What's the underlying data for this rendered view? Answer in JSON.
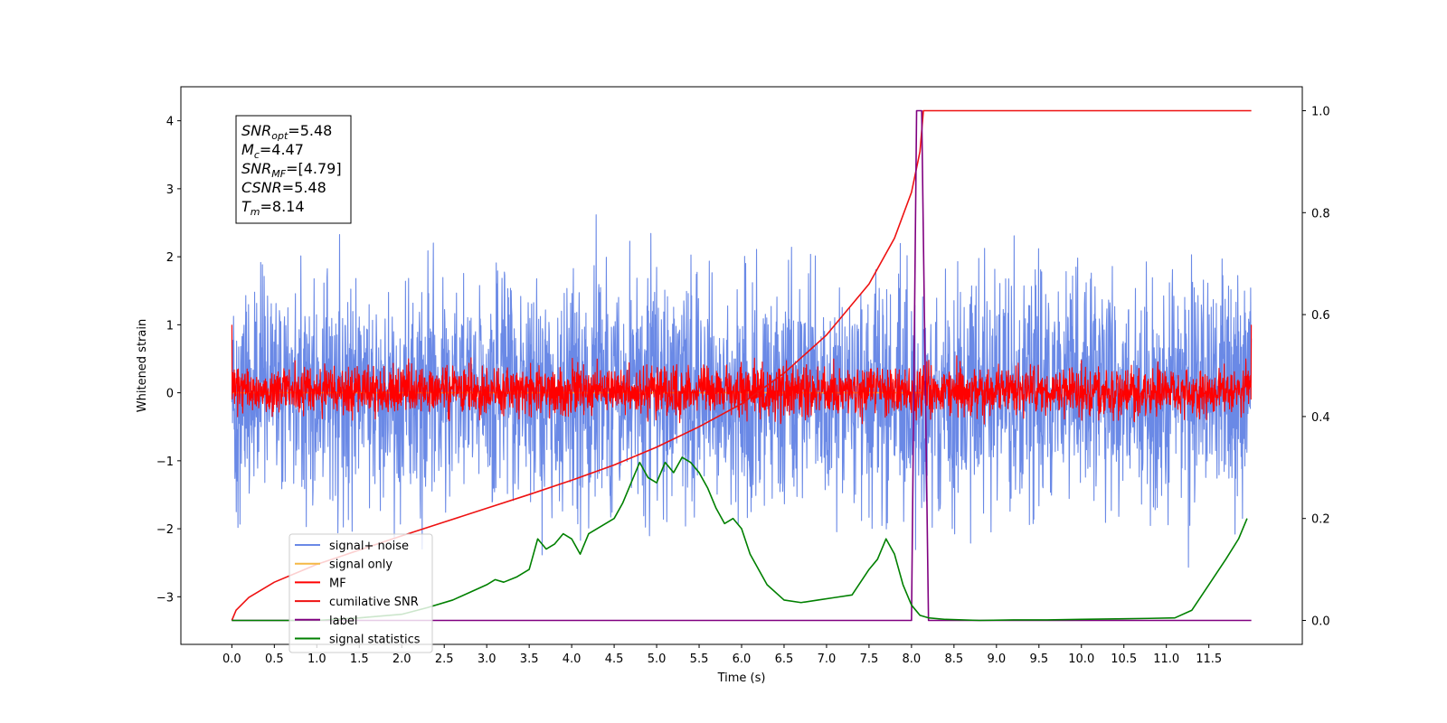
{
  "chart_data": {
    "type": "line",
    "xlabel": "Time (s)",
    "ylabel": "Whitened strain",
    "x_range": [
      -0.6,
      12.6
    ],
    "y_left_range": [
      -3.7,
      4.5
    ],
    "y_right_range": [
      -0.047,
      1.047
    ],
    "x_ticks": [
      0.0,
      0.5,
      1.0,
      1.5,
      2.0,
      2.5,
      3.0,
      3.5,
      4.0,
      4.5,
      5.0,
      5.5,
      6.0,
      6.5,
      7.0,
      7.5,
      8.0,
      8.5,
      9.0,
      9.5,
      10.0,
      10.5,
      11.0,
      11.5
    ],
    "x_tick_labels": [
      "0.0",
      "0.5",
      "1.0",
      "1.5",
      "2.0",
      "2.5",
      "3.0",
      "3.5",
      "4.0",
      "4.5",
      "5.0",
      "5.5",
      "6.0",
      "6.5",
      "7.0",
      "7.5",
      "8.0",
      "8.5",
      "9.0",
      "9.5",
      "10.0",
      "10.5",
      "11.0",
      "11.5"
    ],
    "y_left_ticks": [
      -3,
      -2,
      -1,
      0,
      1,
      2,
      3,
      4
    ],
    "y_left_tick_labels": [
      "−3",
      "−2",
      "−1",
      "0",
      "1",
      "2",
      "3",
      "4"
    ],
    "y_right_ticks": [
      0.0,
      0.2,
      0.4,
      0.6,
      0.8,
      1.0
    ],
    "y_right_tick_labels": [
      "0.0",
      "0.2",
      "0.4",
      "0.6",
      "0.8",
      "1.0"
    ],
    "grid": false,
    "legend_position": "bottom-left",
    "series": [
      {
        "name": "signal+ noise",
        "axis": "left",
        "color": "#6a89e6",
        "kind": "noise",
        "t_range": [
          0,
          12
        ],
        "sigma": 0.85,
        "mean": 0.0,
        "n": 3000
      },
      {
        "name": "signal only",
        "axis": "left",
        "color": "#f5b845",
        "kind": "flat",
        "t_range": [
          0,
          8.14
        ],
        "value": 0.0
      },
      {
        "name": "MF",
        "axis": "left",
        "color": "#ff0000",
        "kind": "noise",
        "t_range": [
          0,
          12
        ],
        "sigma": 0.18,
        "mean": 0.03,
        "n": 3000,
        "edges": [
          1.0,
          1.0
        ]
      },
      {
        "name": "cumilative SNR",
        "axis": "right",
        "color": "#ee1111",
        "kind": "line",
        "x": [
          0.0,
          0.05,
          0.2,
          0.5,
          1.0,
          1.5,
          2.0,
          2.5,
          3.0,
          3.5,
          4.0,
          4.5,
          5.0,
          5.5,
          6.0,
          6.5,
          7.0,
          7.5,
          7.8,
          8.0,
          8.1,
          8.14,
          8.5,
          9.0,
          10.0,
          11.0,
          12.0
        ],
        "y": [
          0.0,
          0.02,
          0.045,
          0.075,
          0.11,
          0.138,
          0.166,
          0.193,
          0.22,
          0.247,
          0.275,
          0.305,
          0.34,
          0.38,
          0.425,
          0.485,
          0.56,
          0.66,
          0.75,
          0.84,
          0.92,
          1.0,
          1.0,
          1.0,
          1.0,
          1.0,
          1.0
        ]
      },
      {
        "name": "label",
        "axis": "right",
        "color": "#800080",
        "kind": "line",
        "x": [
          0.0,
          8.0,
          8.06,
          8.12,
          8.2,
          12.0
        ],
        "y": [
          0.0,
          0.0,
          1.0,
          1.0,
          0.0,
          0.0
        ]
      },
      {
        "name": "signal statistics",
        "axis": "right",
        "color": "#008000",
        "kind": "line",
        "x": [
          0.0,
          1.0,
          1.5,
          2.0,
          2.3,
          2.6,
          2.8,
          3.0,
          3.1,
          3.2,
          3.35,
          3.5,
          3.55,
          3.6,
          3.7,
          3.8,
          3.9,
          4.0,
          4.1,
          4.2,
          4.3,
          4.4,
          4.5,
          4.6,
          4.7,
          4.8,
          4.9,
          5.0,
          5.1,
          5.2,
          5.3,
          5.4,
          5.5,
          5.6,
          5.7,
          5.8,
          5.9,
          6.0,
          6.1,
          6.3,
          6.5,
          6.7,
          6.9,
          7.1,
          7.3,
          7.5,
          7.6,
          7.7,
          7.8,
          7.9,
          8.0,
          8.1,
          8.2,
          8.4,
          8.8,
          9.2,
          9.6,
          10.0,
          10.4,
          10.8,
          11.1,
          11.3,
          11.5,
          11.7,
          11.85,
          11.95
        ],
        "y": [
          0.0,
          0.0,
          0.005,
          0.012,
          0.025,
          0.04,
          0.055,
          0.07,
          0.08,
          0.075,
          0.085,
          0.1,
          0.13,
          0.16,
          0.14,
          0.15,
          0.17,
          0.16,
          0.13,
          0.17,
          0.18,
          0.19,
          0.2,
          0.23,
          0.27,
          0.31,
          0.28,
          0.27,
          0.31,
          0.29,
          0.32,
          0.31,
          0.29,
          0.26,
          0.22,
          0.19,
          0.2,
          0.18,
          0.13,
          0.07,
          0.04,
          0.035,
          0.04,
          0.045,
          0.05,
          0.1,
          0.12,
          0.16,
          0.13,
          0.07,
          0.03,
          0.01,
          0.005,
          0.002,
          0.0,
          0.001,
          0.001,
          0.002,
          0.003,
          0.004,
          0.005,
          0.02,
          0.07,
          0.12,
          0.16,
          0.2
        ]
      }
    ],
    "annotation": {
      "lines": [
        {
          "base": "SNR",
          "sub": "opt",
          "value": "=5.48"
        },
        {
          "base": "M",
          "sub": "c",
          "value": "=4.47"
        },
        {
          "base": "SNR",
          "sub": "MF",
          "value": "=[4.79]"
        },
        {
          "base": "CSNR",
          "sub": "",
          "value": "=5.48"
        },
        {
          "base": "T",
          "sub": "m",
          "value": "=8.14"
        }
      ]
    }
  }
}
